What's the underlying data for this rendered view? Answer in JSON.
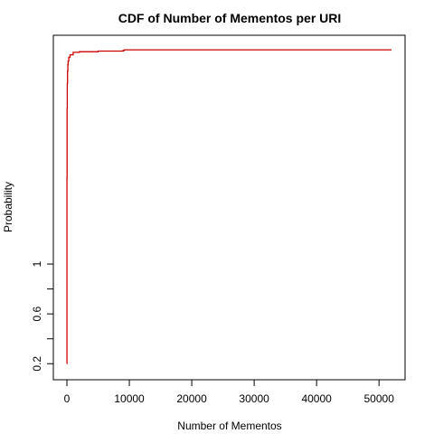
{
  "chart_data": {
    "type": "line",
    "title": "CDF of Number of Mementos per URI",
    "xlabel": "Number of Mementos",
    "ylabel": "Probability",
    "xlim": [
      0,
      52000
    ],
    "ylim": [
      0.18,
      2.75
    ],
    "x_ticks": [
      0,
      10000,
      20000,
      30000,
      40000,
      50000
    ],
    "y_ticks": [
      0.2,
      0.4,
      0.6,
      0.8,
      1.0
    ],
    "y_tick_labels": [
      "0.2",
      "",
      "0.6",
      "",
      "1"
    ],
    "grid": false,
    "legend": "none",
    "series": [
      {
        "color": "#cc0000",
        "x": [
          0,
          10,
          30,
          60,
          100,
          150,
          200,
          300,
          500,
          1000,
          2000,
          5000,
          9000,
          9200,
          20000,
          52000
        ],
        "y": [
          0.2,
          1.7,
          2.25,
          2.45,
          2.55,
          2.6,
          2.63,
          2.66,
          2.68,
          2.7,
          2.705,
          2.71,
          2.715,
          2.72,
          2.72,
          2.72
        ]
      }
    ]
  }
}
